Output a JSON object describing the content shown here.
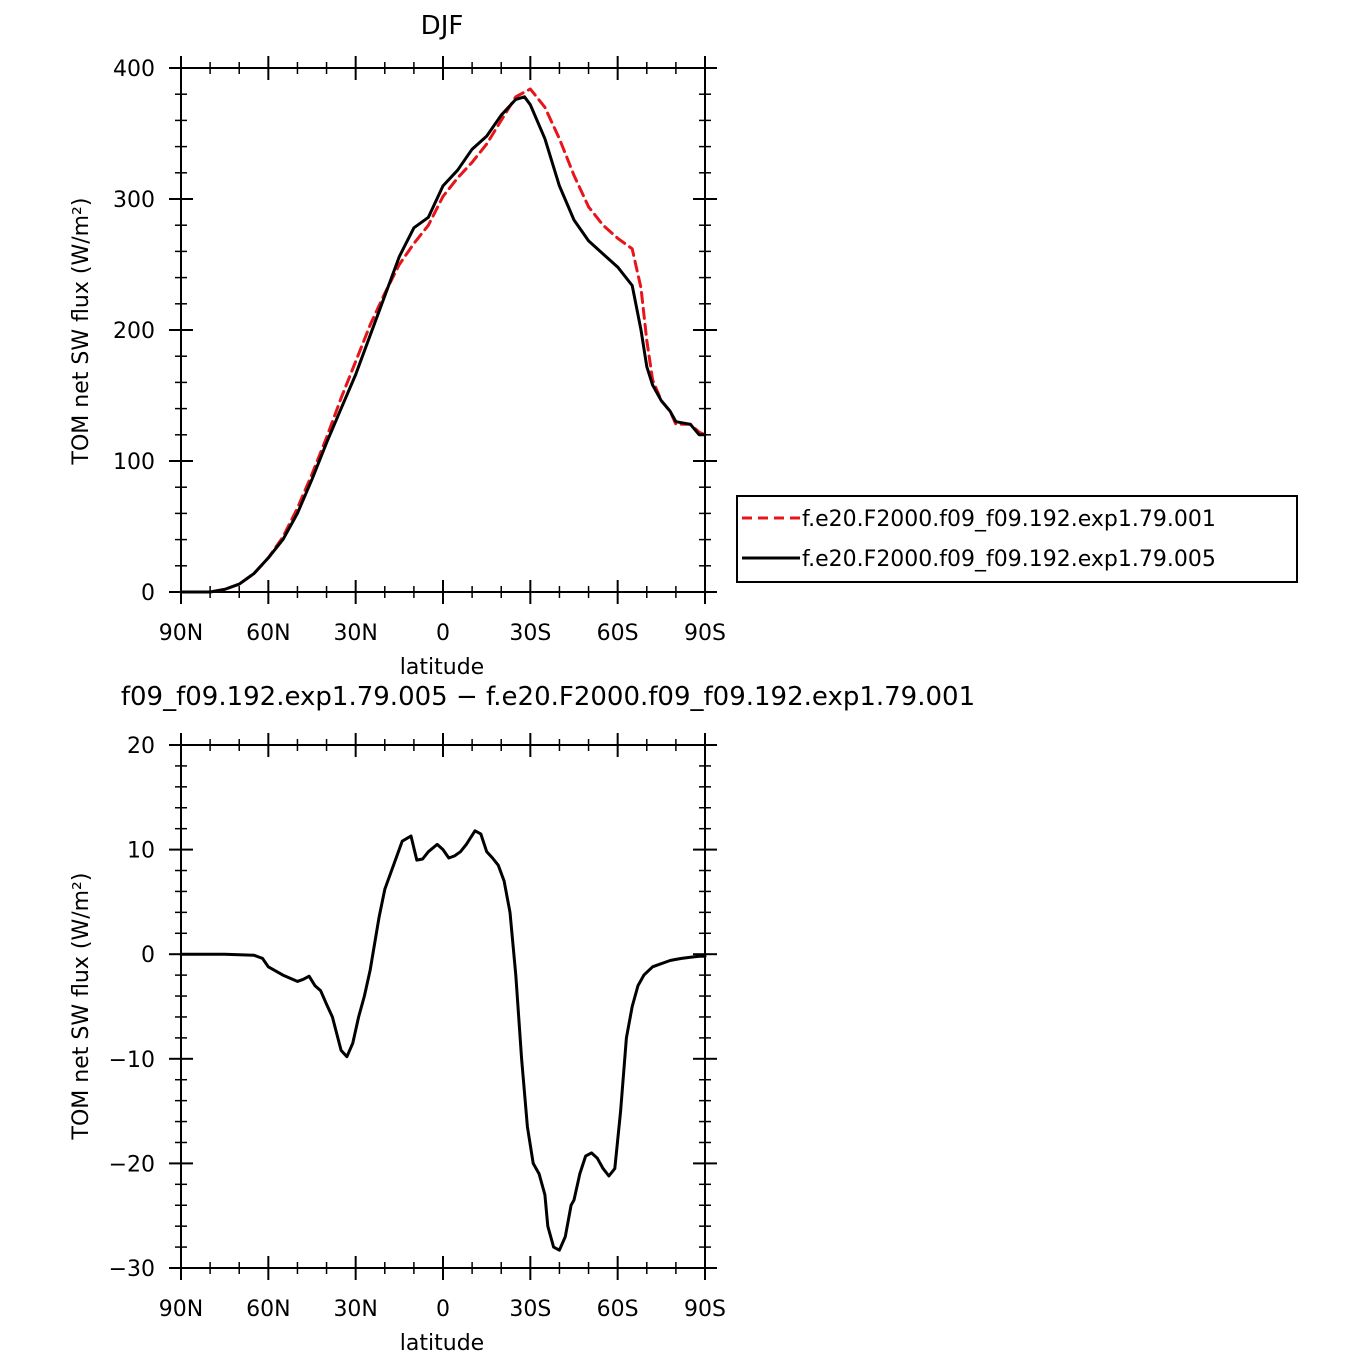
{
  "chart_data": [
    {
      "type": "line",
      "title": "DJF",
      "xlabel": "latitude",
      "ylabel": "TOM net SW flux (W/m²)",
      "xlim": [
        -90,
        90
      ],
      "ylim": [
        0,
        400
      ],
      "x_ticks": [
        -90,
        -60,
        -30,
        0,
        30,
        60,
        90
      ],
      "x_tick_labels": [
        "90N",
        "60N",
        "30N",
        "0",
        "30S",
        "60S",
        "90S"
      ],
      "y_ticks": [
        0,
        100,
        200,
        300,
        400
      ],
      "y_tick_labels": [
        "0",
        "100",
        "200",
        "300",
        "400"
      ],
      "legend_position": "right",
      "colors": {
        "exp001": "#e8141b",
        "exp005": "#000000"
      },
      "series": [
        {
          "name": "f.e20.F2000.f09_f09.192.exp1.79.001",
          "style": "dashed",
          "color": "#e8141b",
          "x": [
            -90,
            -80,
            -75,
            -70,
            -65,
            -60,
            -55,
            -50,
            -45,
            -40,
            -35,
            -30,
            -25,
            -20,
            -15,
            -10,
            -5,
            0,
            5,
            10,
            15,
            20,
            25,
            30,
            35,
            40,
            45,
            50,
            55,
            60,
            65,
            68,
            70,
            72,
            75,
            78,
            80,
            85,
            88,
            90
          ],
          "values": [
            0,
            0,
            2,
            6,
            14,
            26,
            42,
            64,
            90,
            118,
            148,
            176,
            204,
            228,
            250,
            266,
            280,
            302,
            316,
            328,
            342,
            360,
            378,
            384,
            370,
            346,
            318,
            294,
            280,
            270,
            262,
            232,
            192,
            162,
            146,
            138,
            128,
            128,
            122,
            120
          ]
        },
        {
          "name": "f.e20.F2000.f09_f09.192.exp1.79.005",
          "style": "solid",
          "color": "#000000",
          "x": [
            -90,
            -80,
            -75,
            -70,
            -65,
            -60,
            -55,
            -50,
            -45,
            -40,
            -35,
            -30,
            -25,
            -20,
            -15,
            -10,
            -5,
            0,
            5,
            10,
            15,
            20,
            25,
            28,
            30,
            35,
            40,
            45,
            50,
            55,
            60,
            65,
            68,
            70,
            72,
            75,
            78,
            80,
            85,
            88,
            90
          ],
          "values": [
            0,
            0,
            2,
            6,
            14,
            26,
            40,
            60,
            86,
            114,
            140,
            166,
            196,
            226,
            256,
            278,
            286,
            310,
            322,
            338,
            348,
            364,
            376,
            378,
            372,
            346,
            310,
            284,
            268,
            258,
            248,
            234,
            200,
            172,
            158,
            146,
            138,
            130,
            128,
            120,
            120
          ]
        }
      ]
    },
    {
      "type": "line",
      "title": "f09_f09.192.exp1.79.005 − f.e20.F2000.f09_f09.192.exp1.79.001",
      "xlabel": "latitude",
      "ylabel": "TOM net SW flux (W/m²)",
      "xlim": [
        -90,
        90
      ],
      "ylim": [
        -30,
        20
      ],
      "x_ticks": [
        -90,
        -60,
        -30,
        0,
        30,
        60,
        90
      ],
      "x_tick_labels": [
        "90N",
        "60N",
        "30N",
        "0",
        "30S",
        "60S",
        "90S"
      ],
      "y_ticks": [
        -30,
        -20,
        -10,
        0,
        10,
        20
      ],
      "y_tick_labels": [
        "−30",
        "−20",
        "−10",
        "0",
        "10",
        "20"
      ],
      "series": [
        {
          "color": "#000000",
          "x": [
            -90,
            -75,
            -65,
            -62,
            -60,
            -55,
            -50,
            -48,
            -46,
            -44,
            -42,
            -40,
            -38,
            -35,
            -33,
            -31,
            -29,
            -27,
            -25,
            -22,
            -20,
            -17,
            -14,
            -11,
            -9,
            -7,
            -5,
            -2,
            0,
            2,
            4,
            6,
            8,
            11,
            13,
            15,
            17,
            19,
            21,
            23,
            25,
            27,
            29,
            31,
            33,
            35,
            36,
            38,
            40,
            42,
            44,
            45,
            47,
            49,
            51,
            53,
            55,
            57,
            59,
            61,
            63,
            65,
            67,
            69,
            72,
            74,
            76,
            78,
            80,
            82,
            85,
            88,
            90
          ],
          "values": [
            0,
            0,
            -0.1,
            -0.4,
            -1.2,
            -2.0,
            -2.6,
            -2.4,
            -2.1,
            -3.0,
            -3.5,
            -4.8,
            -6.0,
            -9.2,
            -9.8,
            -8.5,
            -6.0,
            -4.0,
            -1.5,
            3.5,
            6.2,
            8.5,
            10.8,
            11.3,
            9.0,
            9.1,
            9.8,
            10.5,
            10.0,
            9.2,
            9.4,
            9.8,
            10.5,
            11.8,
            11.5,
            9.8,
            9.2,
            8.5,
            7.0,
            4.0,
            -2.0,
            -10.0,
            -16.5,
            -20.0,
            -21.0,
            -23.0,
            -26.0,
            -28.0,
            -28.3,
            -27.0,
            -24.0,
            -23.5,
            -21.0,
            -19.3,
            -19.0,
            -19.5,
            -20.5,
            -21.2,
            -20.5,
            -15.0,
            -8.0,
            -5.0,
            -3.0,
            -2.0,
            -1.2,
            -1.0,
            -0.8,
            -0.6,
            -0.5,
            -0.4,
            -0.3,
            -0.2,
            -0.2
          ]
        }
      ]
    }
  ]
}
